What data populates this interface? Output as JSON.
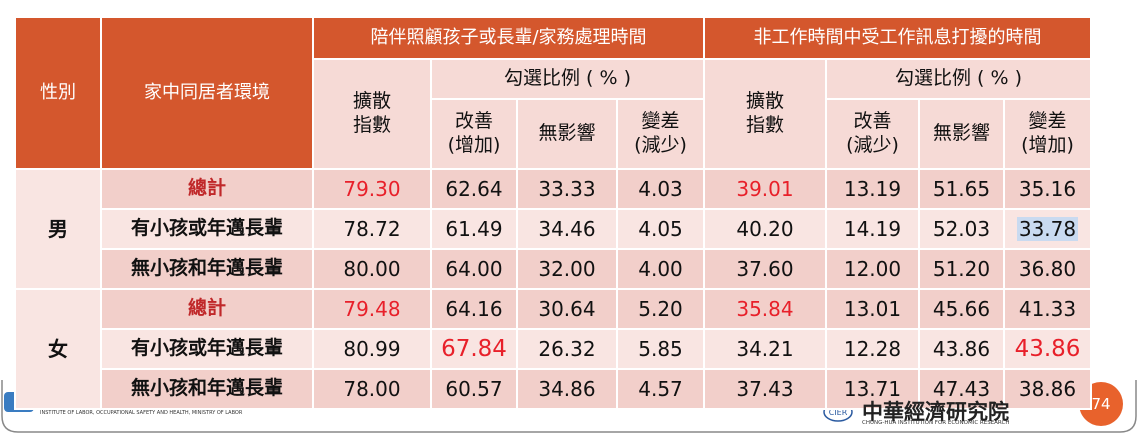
{
  "table": {
    "header": {
      "sex": "性別",
      "env": "家中同居者環境",
      "group1": "陪伴照顧孩子或長輩/家務處理時間",
      "group2": "非工作時間中受工作訊息打擾的時間",
      "index1": "擴散\n指數",
      "ratio1": "勾選比例 ( % )",
      "better1": "改善\n(增加)",
      "none1": "無影響",
      "worse1": "變差\n(減少)",
      "index2": "擴散\n指數",
      "ratio2": "勾選比例 ( % )",
      "better2": "改善\n(減少)",
      "none2": "無影響",
      "worse2": "變差\n(增加)"
    },
    "groups": [
      {
        "sex": "男",
        "rows": [
          {
            "env": "總計",
            "values": [
              "79.30",
              "62.64",
              "33.33",
              "4.03",
              "39.01",
              "13.19",
              "51.65",
              "35.16"
            ]
          },
          {
            "env": "有小孩或年邁長輩",
            "values": [
              "78.72",
              "61.49",
              "34.46",
              "4.05",
              "40.20",
              "14.19",
              "52.03",
              "33.78"
            ]
          },
          {
            "env": "無小孩和年邁長輩",
            "values": [
              "80.00",
              "64.00",
              "32.00",
              "4.00",
              "37.60",
              "12.00",
              "51.20",
              "36.80"
            ]
          }
        ]
      },
      {
        "sex": "女",
        "rows": [
          {
            "env": "總計",
            "values": [
              "79.48",
              "64.16",
              "30.64",
              "5.20",
              "35.84",
              "13.01",
              "45.66",
              "41.33"
            ]
          },
          {
            "env": "有小孩或年邁長輩",
            "values": [
              "80.99",
              "67.84",
              "26.32",
              "5.85",
              "34.21",
              "12.28",
              "43.86",
              "43.86"
            ]
          },
          {
            "env": "無小孩和年邁長輩",
            "values": [
              "78.00",
              "60.57",
              "34.86",
              "4.57",
              "37.43",
              "13.71",
              "47.43",
              "38.86"
            ]
          }
        ]
      }
    ],
    "footer": {
      "left_en": "INSTITUTE OF LABOR, OCCUPATIONAL SAFETY AND HEALTH, MINISTRY OF LABOR",
      "right_logo": "CIER",
      "right_zh": "中華經濟研究院",
      "right_en": "CHUNG-HUA INSTITUTION FOR ECONOMIC RESEARCH",
      "page": "74"
    }
  }
}
